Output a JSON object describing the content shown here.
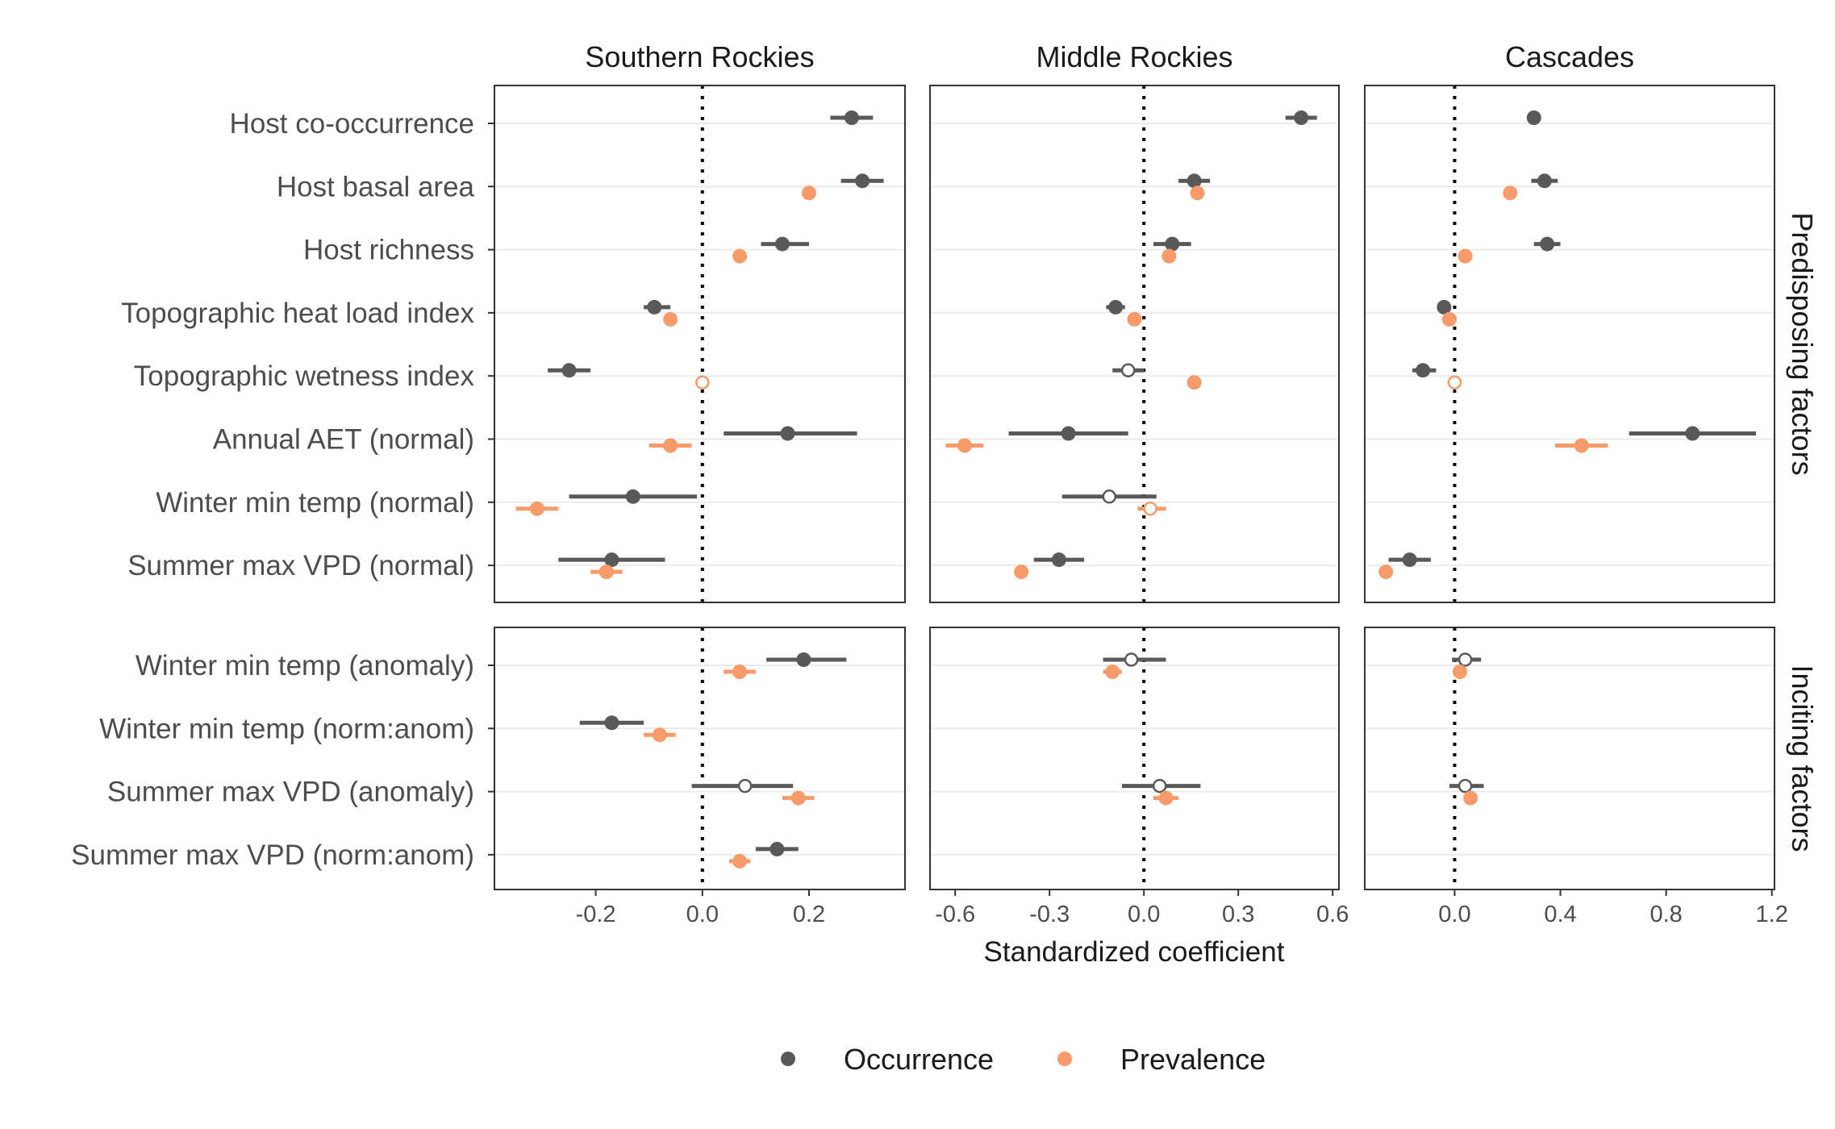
{
  "chart_data": {
    "type": "scatter",
    "xlabel": "Standardized coefficient",
    "panels": [
      {
        "name": "Southern Rockies",
        "xlim": [
          -0.39,
          0.38
        ],
        "ticks": [
          -0.2,
          0.0,
          0.2
        ],
        "tick_labels": [
          "-0.2",
          "0.0",
          "0.2"
        ]
      },
      {
        "name": "Middle Rockies",
        "xlim": [
          -0.68,
          0.62
        ],
        "ticks": [
          -0.6,
          -0.3,
          0.0,
          0.3,
          0.6
        ],
        "tick_labels": [
          "-0.6",
          "-0.3",
          "0.0",
          "0.3",
          "0.6"
        ]
      },
      {
        "name": "Cascades",
        "xlim": [
          -0.34,
          1.21
        ],
        "ticks": [
          0.0,
          0.4,
          0.8,
          1.2
        ],
        "tick_labels": [
          "0.0",
          "0.4",
          "0.8",
          "1.2"
        ]
      }
    ],
    "row_groups": [
      {
        "name": "Predisposing factors",
        "variables": [
          "Host co-occurrence",
          "Host basal area",
          "Host richness",
          "Topographic heat load index",
          "Topographic wetness index",
          "Annual AET (normal)",
          "Winter min temp (normal)",
          "Summer max VPD (normal)"
        ]
      },
      {
        "name": "Inciting factors",
        "variables": [
          "Winter min temp (anomaly)",
          "Winter min temp (norm:anom)",
          "Summer max VPD (anomaly)",
          "Summer max VPD (norm:anom)"
        ]
      }
    ],
    "series": [
      {
        "name": "Occurrence",
        "color": "#595959",
        "points": [
          [
            [
              0.28,
              0.24,
              0.32,
              true
            ],
            [
              0.3,
              0.26,
              0.34,
              true
            ],
            [
              0.15,
              0.11,
              0.2,
              true
            ],
            [
              -0.09,
              -0.11,
              -0.06,
              true
            ],
            [
              -0.25,
              -0.29,
              -0.21,
              true
            ],
            [
              0.16,
              0.04,
              0.29,
              true
            ],
            [
              -0.13,
              -0.25,
              -0.01,
              true
            ],
            [
              -0.17,
              -0.27,
              -0.07,
              true
            ],
            [
              0.19,
              0.12,
              0.27,
              true
            ],
            [
              -0.17,
              -0.23,
              -0.11,
              true
            ],
            [
              0.08,
              -0.02,
              0.17,
              false
            ],
            [
              0.14,
              0.1,
              0.18,
              true
            ]
          ],
          [
            [
              0.5,
              0.45,
              0.55,
              true
            ],
            [
              0.16,
              0.11,
              0.21,
              true
            ],
            [
              0.09,
              0.03,
              0.15,
              true
            ],
            [
              -0.09,
              -0.12,
              -0.06,
              true
            ],
            [
              -0.05,
              -0.1,
              0.0,
              false
            ],
            [
              -0.24,
              -0.43,
              -0.05,
              true
            ],
            [
              -0.11,
              -0.26,
              0.04,
              false
            ],
            [
              -0.27,
              -0.35,
              -0.19,
              true
            ],
            [
              -0.04,
              -0.13,
              0.07,
              false
            ],
            null,
            [
              0.05,
              -0.07,
              0.18,
              false
            ],
            null
          ],
          [
            [
              0.3,
              0.28,
              0.31,
              true
            ],
            [
              0.34,
              0.29,
              0.39,
              true
            ],
            [
              0.35,
              0.3,
              0.4,
              true
            ],
            [
              -0.04,
              -0.06,
              -0.02,
              true
            ],
            [
              -0.12,
              -0.16,
              -0.07,
              true
            ],
            [
              0.9,
              0.66,
              1.14,
              true
            ],
            null,
            [
              -0.17,
              -0.25,
              -0.09,
              true
            ],
            [
              0.04,
              -0.01,
              0.1,
              false
            ],
            null,
            [
              0.04,
              -0.02,
              0.11,
              false
            ],
            null
          ]
        ]
      },
      {
        "name": "Prevalence",
        "color": "#F89B6A",
        "points": [
          [
            [
              0.2,
              0.19,
              0.21,
              true
            ],
            [
              0.07,
              0.06,
              0.08,
              true
            ],
            [
              -0.06,
              -0.07,
              -0.05,
              true
            ],
            [
              0.0,
              -0.01,
              0.01,
              false
            ],
            [
              -0.06,
              -0.1,
              -0.02,
              true
            ],
            [
              -0.31,
              -0.35,
              -0.27,
              true
            ],
            [
              -0.18,
              -0.21,
              -0.15,
              true
            ],
            [
              0.07,
              0.04,
              0.1,
              true
            ],
            [
              -0.08,
              -0.11,
              -0.05,
              true
            ],
            [
              0.18,
              0.15,
              0.21,
              true
            ],
            [
              0.07,
              0.05,
              0.09,
              true
            ]
          ],
          [
            [
              0.17,
              0.16,
              0.18,
              true
            ],
            [
              0.08,
              0.07,
              0.09,
              true
            ],
            [
              -0.03,
              -0.04,
              -0.02,
              true
            ],
            [
              0.16,
              0.15,
              0.17,
              true
            ],
            [
              -0.57,
              -0.63,
              -0.51,
              true
            ],
            [
              0.02,
              -0.02,
              0.07,
              false
            ],
            [
              -0.39,
              -0.4,
              -0.38,
              true
            ],
            [
              -0.1,
              -0.13,
              -0.07,
              true
            ],
            null,
            [
              0.07,
              0.03,
              0.11,
              true
            ],
            null
          ],
          [
            [
              0.21,
              0.2,
              0.22,
              true
            ],
            [
              0.04,
              0.03,
              0.05,
              true
            ],
            [
              -0.02,
              -0.03,
              -0.01,
              true
            ],
            [
              0.0,
              -0.01,
              0.01,
              false
            ],
            [
              0.48,
              0.38,
              0.58,
              true
            ],
            null,
            [
              -0.26,
              -0.27,
              -0.25,
              true
            ],
            [
              0.02,
              0.01,
              0.03,
              true
            ],
            null,
            [
              0.06,
              0.05,
              0.07,
              true
            ],
            null
          ]
        ]
      }
    ],
    "legend": {
      "placement": "bottom",
      "entries": [
        "Occurrence",
        "Prevalence"
      ]
    },
    "grid": "horizontal"
  }
}
